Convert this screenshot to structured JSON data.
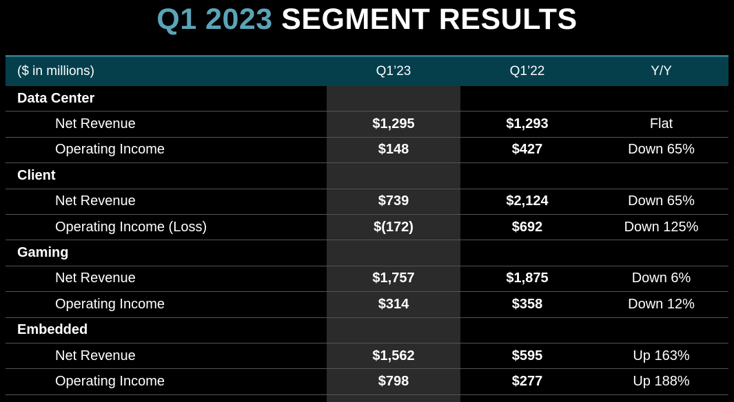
{
  "title": {
    "highlight": "Q1 2023",
    "rest": "SEGMENT RESULTS"
  },
  "colors": {
    "background": "#000000",
    "title_accent": "#5ba4b8",
    "header_bg": "#053f4c",
    "header_top_border": "#2d7486",
    "highlight_band": "#2b2b2b",
    "row_divider": "#555555",
    "text": "#ffffff"
  },
  "table": {
    "caption": "($ in millions)",
    "columns": [
      "Q1’23",
      "Q1’22",
      "Y/Y"
    ],
    "rows": [
      {
        "type": "section",
        "label": "Data Center",
        "q123": "",
        "q122": "",
        "yy": ""
      },
      {
        "type": "item",
        "label": "Net Revenue",
        "q123": "$1,295",
        "q122": "$1,293",
        "yy": "Flat"
      },
      {
        "type": "item",
        "label": "Operating Income",
        "q123": "$148",
        "q122": "$427",
        "yy": "Down 65%"
      },
      {
        "type": "section",
        "label": "Client",
        "q123": "",
        "q122": "",
        "yy": ""
      },
      {
        "type": "item",
        "label": "Net Revenue",
        "q123": "$739",
        "q122": "$2,124",
        "yy": "Down 65%"
      },
      {
        "type": "item",
        "label": "Operating Income (Loss)",
        "q123": "$(172)",
        "q122": "$692",
        "yy": "Down 125%"
      },
      {
        "type": "section",
        "label": "Gaming",
        "q123": "",
        "q122": "",
        "yy": ""
      },
      {
        "type": "item",
        "label": "Net Revenue",
        "q123": "$1,757",
        "q122": "$1,875",
        "yy": "Down 6%"
      },
      {
        "type": "item",
        "label": "Operating Income",
        "q123": "$314",
        "q122": "$358",
        "yy": "Down 12%"
      },
      {
        "type": "section",
        "label": "Embedded",
        "q123": "",
        "q122": "",
        "yy": ""
      },
      {
        "type": "item",
        "label": "Net Revenue",
        "q123": "$1,562",
        "q122": "$595",
        "yy": "Up 163%"
      },
      {
        "type": "item",
        "label": "Operating Income",
        "q123": "$798",
        "q122": "$277",
        "yy": "Up 188%"
      }
    ]
  },
  "chart_data": {
    "type": "table",
    "title": "Q1 2023 SEGMENT RESULTS",
    "unit": "$ in millions",
    "categories": [
      "Q1'23",
      "Q1'22",
      "Y/Y"
    ],
    "series": [
      {
        "name": "Data Center Net Revenue",
        "values": [
          "$1,295",
          "$1,293",
          "Flat"
        ]
      },
      {
        "name": "Data Center Operating Income",
        "values": [
          "$148",
          "$427",
          "Down 65%"
        ]
      },
      {
        "name": "Client Net Revenue",
        "values": [
          "$739",
          "$2,124",
          "Down 65%"
        ]
      },
      {
        "name": "Client Operating Income (Loss)",
        "values": [
          "$(172)",
          "$692",
          "Down 125%"
        ]
      },
      {
        "name": "Gaming Net Revenue",
        "values": [
          "$1,757",
          "$1,875",
          "Down 6%"
        ]
      },
      {
        "name": "Gaming Operating Income",
        "values": [
          "$314",
          "$358",
          "Down 12%"
        ]
      },
      {
        "name": "Embedded Net Revenue",
        "values": [
          "$1,562",
          "$595",
          "Up 163%"
        ]
      },
      {
        "name": "Embedded Operating Income",
        "values": [
          "$798",
          "$277",
          "Up 188%"
        ]
      }
    ]
  }
}
